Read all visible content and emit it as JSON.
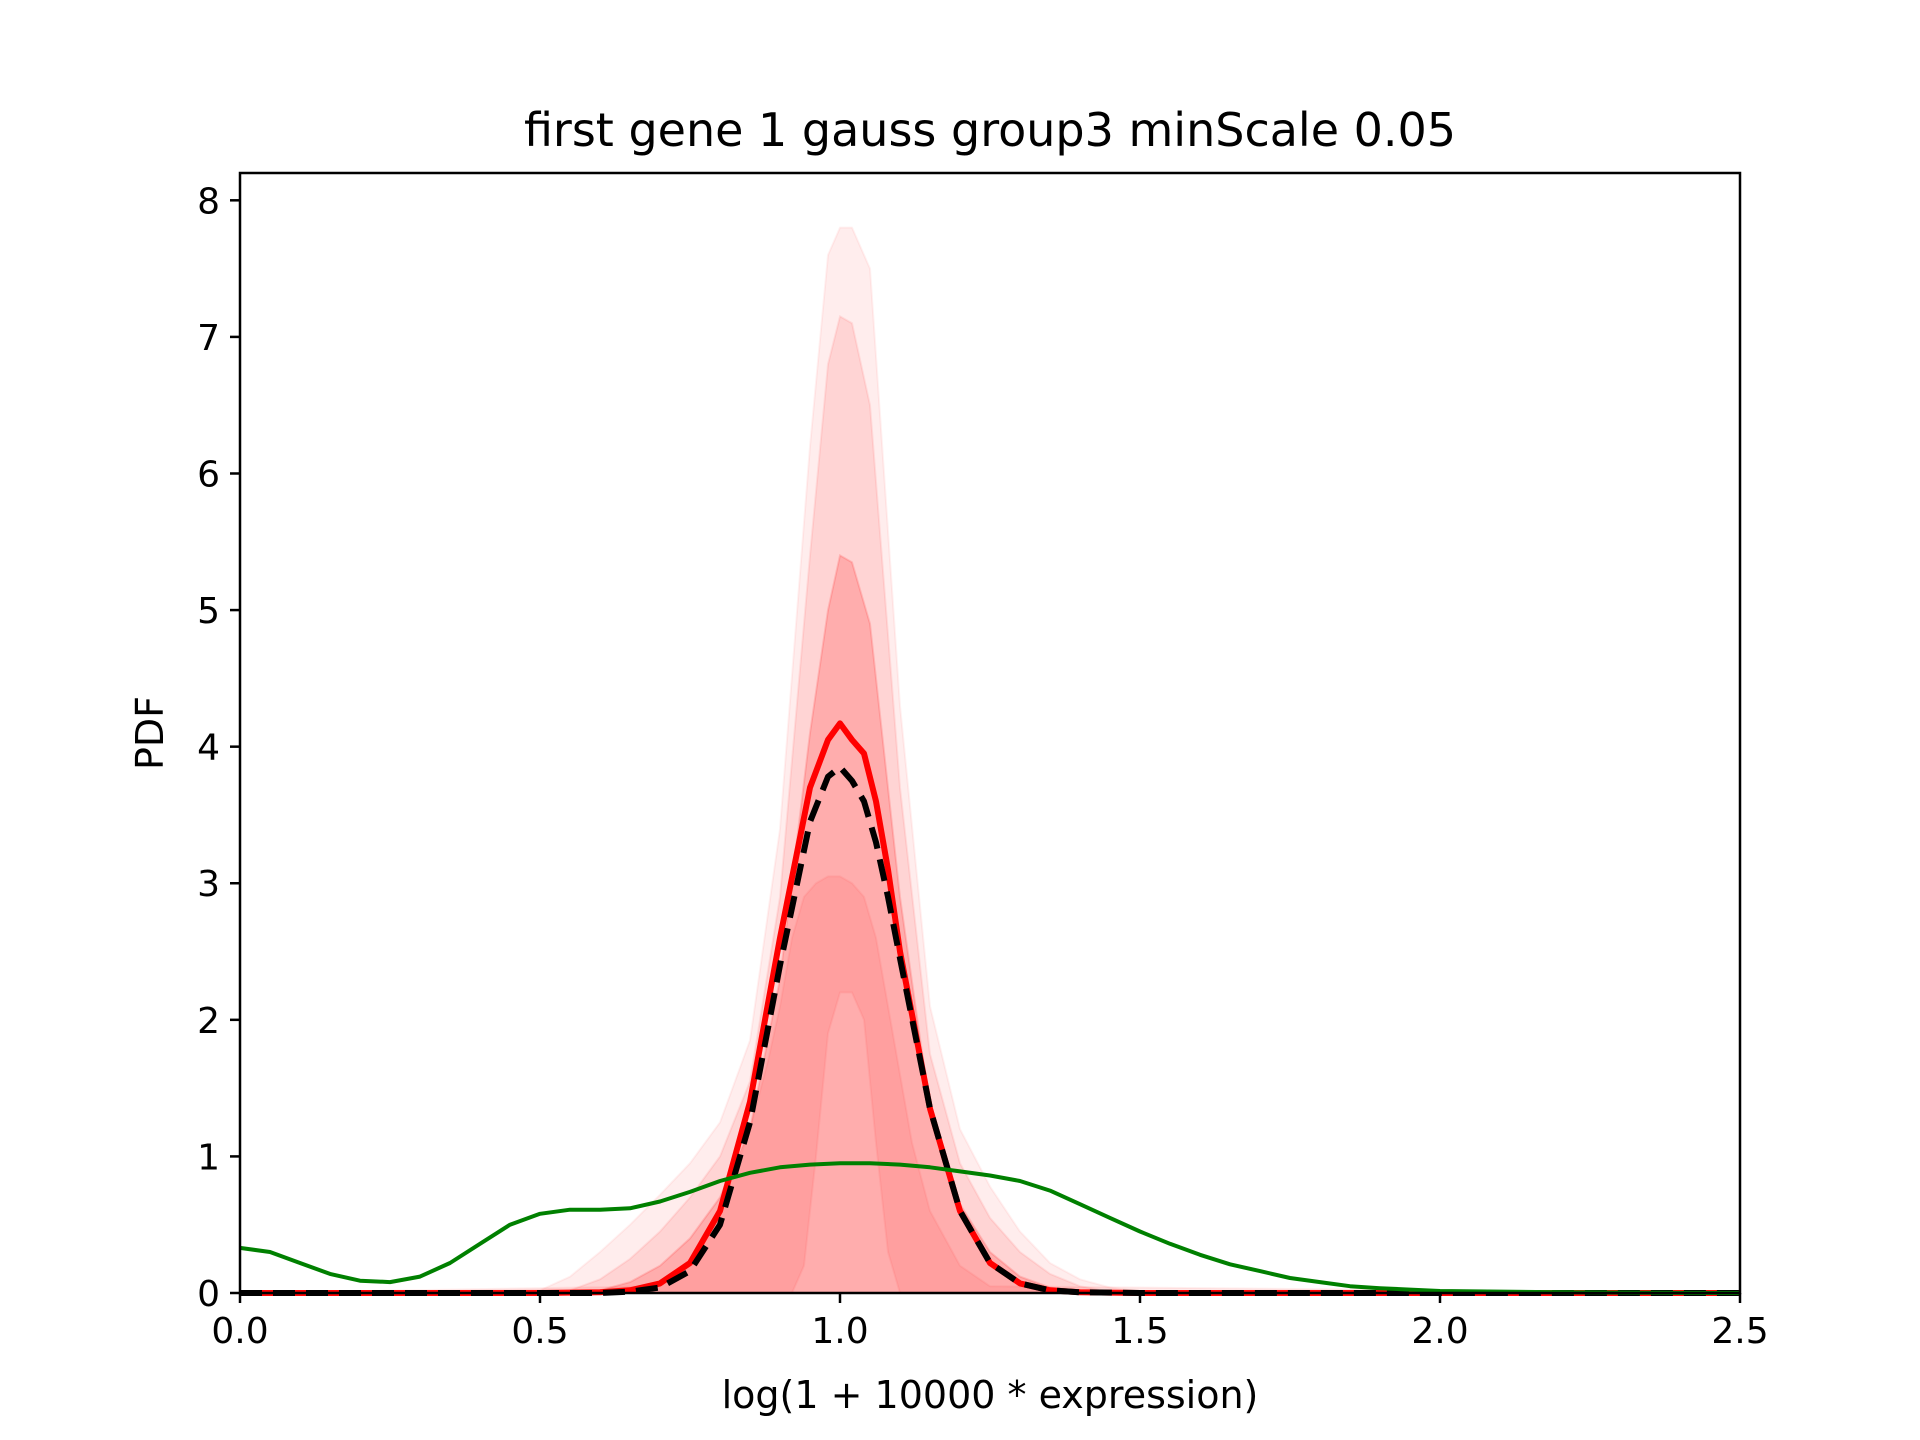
{
  "chart_data": {
    "type": "line",
    "title": "first gene 1 gauss group3 minScale 0.05",
    "xlabel": "log(1 + 10000 * expression)",
    "ylabel": "PDF",
    "xlim": [
      0,
      2.5
    ],
    "ylim": [
      0,
      8.2
    ],
    "xticks": [
      {
        "value": 0.0,
        "label": "0.0"
      },
      {
        "value": 0.5,
        "label": "0.5"
      },
      {
        "value": 1.0,
        "label": "1.0"
      },
      {
        "value": 1.5,
        "label": "1.5"
      },
      {
        "value": 2.0,
        "label": "2.0"
      },
      {
        "value": 2.5,
        "label": "2.5"
      }
    ],
    "yticks": [
      {
        "value": 0,
        "label": "0"
      },
      {
        "value": 1,
        "label": "1"
      },
      {
        "value": 2,
        "label": "2"
      },
      {
        "value": 3,
        "label": "3"
      },
      {
        "value": 4,
        "label": "4"
      },
      {
        "value": 5,
        "label": "5"
      },
      {
        "value": 6,
        "label": "6"
      },
      {
        "value": 7,
        "label": "7"
      },
      {
        "value": 8,
        "label": "8"
      }
    ],
    "grid": false,
    "legend": "none",
    "bands": [
      {
        "color": "#ff0000",
        "opacity": 0.07,
        "x": [
          0.0,
          0.5,
          0.55,
          0.6,
          0.65,
          0.7,
          0.75,
          0.8,
          0.85,
          0.9,
          0.95,
          0.98,
          1.0,
          1.02,
          1.05,
          1.1,
          1.15,
          1.2,
          1.25,
          1.3,
          1.35,
          1.4,
          1.45,
          1.5,
          1.55,
          2.5
        ],
        "lower": [
          0,
          0,
          0,
          0,
          0,
          0,
          0,
          0,
          0,
          0,
          0,
          0,
          0,
          0,
          0,
          0,
          0,
          0,
          0,
          0,
          0,
          0,
          0,
          0,
          0,
          0
        ],
        "upper": [
          0,
          0.02,
          0.12,
          0.3,
          0.5,
          0.72,
          0.95,
          1.25,
          1.85,
          3.4,
          6.2,
          7.6,
          7.8,
          7.8,
          7.5,
          4.3,
          2.1,
          1.2,
          0.78,
          0.45,
          0.22,
          0.1,
          0.04,
          0.01,
          0,
          0
        ]
      },
      {
        "color": "#ff0000",
        "opacity": 0.1,
        "x": [
          0.0,
          0.55,
          0.6,
          0.65,
          0.7,
          0.75,
          0.8,
          0.85,
          0.9,
          0.95,
          0.98,
          1.0,
          1.02,
          1.05,
          1.1,
          1.15,
          1.2,
          1.25,
          1.3,
          1.35,
          1.4,
          1.45,
          2.5
        ],
        "lower": [
          0,
          0,
          0,
          0,
          0,
          0,
          0,
          0,
          0,
          0,
          0,
          0,
          0,
          0,
          0,
          0,
          0,
          0,
          0,
          0,
          0,
          0,
          0
        ],
        "upper": [
          0,
          0.02,
          0.1,
          0.25,
          0.45,
          0.7,
          1.0,
          1.55,
          2.9,
          5.4,
          6.8,
          7.15,
          7.1,
          6.5,
          3.7,
          1.75,
          0.95,
          0.55,
          0.3,
          0.14,
          0.05,
          0.01,
          0
        ]
      },
      {
        "color": "#ff0000",
        "opacity": 0.18,
        "x": [
          0.0,
          0.6,
          0.65,
          0.7,
          0.75,
          0.8,
          0.85,
          0.9,
          0.95,
          0.98,
          1.0,
          1.02,
          1.05,
          1.1,
          1.15,
          1.2,
          1.25,
          1.3,
          1.35,
          1.4,
          2.5
        ],
        "lower": [
          0,
          0,
          0,
          0,
          0,
          0,
          0,
          0,
          0,
          0,
          0,
          0,
          0,
          0,
          0,
          0,
          0,
          0,
          0,
          0,
          0
        ],
        "upper": [
          0,
          0.02,
          0.08,
          0.2,
          0.4,
          0.7,
          1.2,
          2.3,
          4.1,
          5.0,
          5.4,
          5.35,
          4.9,
          2.9,
          1.35,
          0.65,
          0.3,
          0.12,
          0.04,
          0.01,
          0
        ]
      },
      {
        "color": "#ff0000",
        "opacity": 0.08,
        "x": [
          0.0,
          0.7,
          0.75,
          0.8,
          0.85,
          0.88,
          0.9,
          0.92,
          0.94,
          0.96,
          0.98,
          1.0,
          1.02,
          1.04,
          1.06,
          1.08,
          1.1,
          1.12,
          1.15,
          1.2,
          1.25,
          2.5
        ],
        "lower": [
          0,
          0,
          0,
          0,
          0,
          0,
          0,
          0,
          0.2,
          1.0,
          1.9,
          2.2,
          2.2,
          2.0,
          1.1,
          0.3,
          0,
          0,
          0,
          0,
          0,
          0
        ],
        "upper": [
          0,
          0.05,
          0.25,
          0.6,
          1.2,
          1.7,
          2.1,
          2.6,
          2.9,
          3.0,
          3.05,
          3.05,
          3.0,
          2.9,
          2.6,
          2.1,
          1.6,
          1.1,
          0.6,
          0.2,
          0.05,
          0
        ]
      }
    ],
    "series": [
      {
        "color": "#ff0000",
        "width": 6,
        "dash": "",
        "x": [
          0.0,
          0.5,
          0.6,
          0.65,
          0.7,
          0.75,
          0.8,
          0.85,
          0.9,
          0.95,
          0.98,
          1.0,
          1.02,
          1.04,
          1.06,
          1.08,
          1.1,
          1.15,
          1.2,
          1.25,
          1.3,
          1.35,
          1.4,
          1.5,
          2.5
        ],
        "y": [
          0,
          0,
          0.005,
          0.02,
          0.07,
          0.22,
          0.6,
          1.4,
          2.6,
          3.7,
          4.05,
          4.17,
          4.05,
          3.95,
          3.6,
          3.1,
          2.5,
          1.35,
          0.6,
          0.22,
          0.07,
          0.02,
          0.005,
          0,
          0
        ]
      },
      {
        "color": "#000000",
        "width": 6,
        "dash": "22,11",
        "x": [
          0.0,
          0.6,
          0.65,
          0.7,
          0.75,
          0.8,
          0.85,
          0.9,
          0.95,
          0.98,
          1.0,
          1.02,
          1.04,
          1.06,
          1.08,
          1.1,
          1.15,
          1.2,
          1.25,
          1.3,
          1.35,
          1.4,
          1.5,
          2.5
        ],
        "y": [
          0,
          0,
          0.01,
          0.04,
          0.16,
          0.5,
          1.25,
          2.4,
          3.45,
          3.78,
          3.85,
          3.75,
          3.6,
          3.3,
          2.9,
          2.45,
          1.35,
          0.6,
          0.22,
          0.07,
          0.02,
          0.005,
          0,
          0
        ]
      },
      {
        "color": "#008000",
        "width": 4,
        "dash": "",
        "x": [
          0.0,
          0.05,
          0.1,
          0.15,
          0.2,
          0.25,
          0.3,
          0.35,
          0.4,
          0.45,
          0.5,
          0.55,
          0.6,
          0.65,
          0.7,
          0.75,
          0.8,
          0.85,
          0.9,
          0.95,
          1.0,
          1.05,
          1.1,
          1.15,
          1.2,
          1.25,
          1.3,
          1.35,
          1.4,
          1.45,
          1.5,
          1.55,
          1.6,
          1.65,
          1.7,
          1.75,
          1.8,
          1.85,
          1.9,
          1.95,
          2.0,
          2.1,
          2.2,
          2.3,
          2.4,
          2.5
        ],
        "y": [
          0.33,
          0.3,
          0.22,
          0.14,
          0.09,
          0.08,
          0.12,
          0.22,
          0.36,
          0.5,
          0.58,
          0.61,
          0.61,
          0.62,
          0.67,
          0.74,
          0.82,
          0.88,
          0.92,
          0.94,
          0.95,
          0.95,
          0.94,
          0.92,
          0.89,
          0.86,
          0.82,
          0.75,
          0.65,
          0.55,
          0.45,
          0.36,
          0.28,
          0.21,
          0.16,
          0.11,
          0.08,
          0.05,
          0.035,
          0.025,
          0.015,
          0.01,
          0.005,
          0.003,
          0.001,
          0
        ]
      }
    ]
  }
}
